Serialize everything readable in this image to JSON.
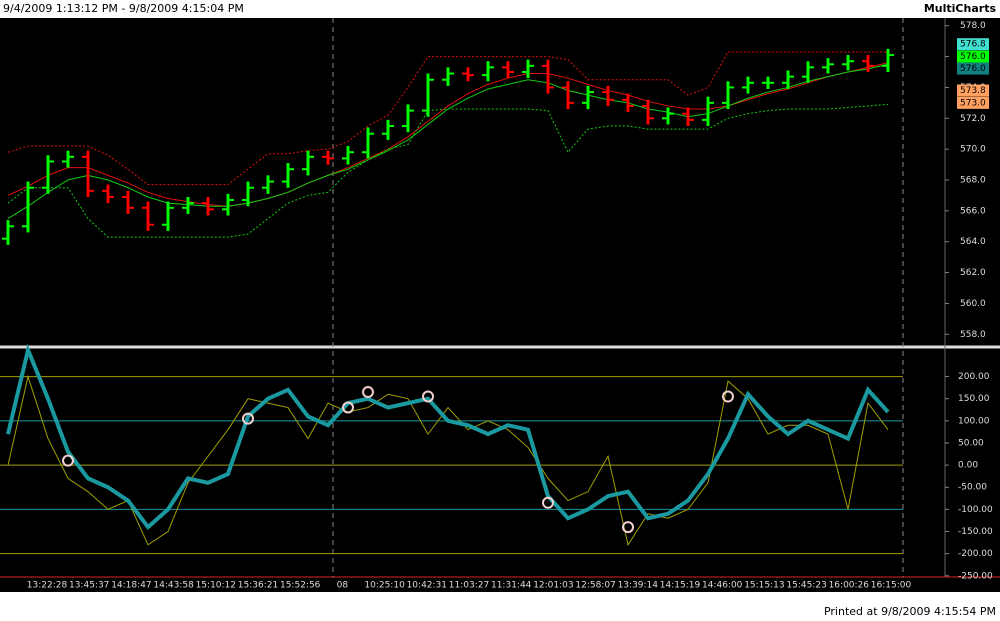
{
  "header": {
    "range": "9/4/2009 1:13:12 PM - 9/8/2009 4:15:04 PM",
    "app": "MultiCharts"
  },
  "footer": "Printed at 9/8/2009 4:15:54 PM",
  "chart_data": [
    {
      "type": "ohlc",
      "up_color": "#00ff00",
      "down_color": "#ff0000",
      "open": [
        564.2,
        565,
        567.5,
        569.2,
        569.5,
        567.3,
        566.9,
        566.2,
        565.1,
        566.2,
        566.5,
        566.1,
        566.7,
        567.5,
        567.9,
        568.7,
        569.5,
        569.4,
        569.8,
        571,
        571.5,
        572.5,
        574.5,
        574.9,
        574.8,
        575.3,
        575,
        575.4,
        574,
        573,
        573.7,
        573.2,
        572.8,
        572,
        572.3,
        571.9,
        573,
        574,
        574.3,
        574.3,
        574.7,
        575.3,
        575.5,
        575.7,
        575.4
      ],
      "high": [
        565.4,
        567.9,
        569.6,
        569.9,
        569.9,
        567.7,
        567.3,
        566.6,
        566.6,
        566.9,
        566.9,
        567.1,
        567.9,
        568.3,
        569.1,
        569.9,
        569.9,
        570.2,
        571.4,
        571.9,
        572.9,
        574.9,
        575.3,
        575.3,
        575.7,
        575.7,
        575.8,
        575.8,
        574.4,
        574.1,
        574.1,
        573.6,
        573.2,
        572.7,
        572.7,
        573.4,
        574.4,
        574.7,
        574.7,
        575.1,
        575.7,
        575.9,
        576.1,
        576.1,
        576.5
      ],
      "low": [
        563.8,
        564.6,
        567.1,
        568.8,
        566.9,
        566.5,
        565.8,
        564.7,
        564.7,
        565.8,
        565.7,
        565.7,
        566.3,
        567.1,
        567.5,
        568.3,
        569,
        569,
        569.4,
        570.6,
        571.1,
        572.1,
        574.1,
        574.4,
        574.4,
        574.6,
        574.6,
        573.6,
        572.6,
        572.6,
        572.8,
        572.4,
        571.6,
        571.6,
        571.5,
        571.5,
        572.6,
        573.6,
        573.9,
        573.9,
        574.3,
        574.9,
        575.1,
        575,
        575
      ],
      "close": [
        565,
        567.5,
        569.2,
        569.5,
        567.3,
        566.9,
        566.2,
        565.1,
        566.2,
        566.5,
        566.1,
        566.7,
        567.5,
        567.9,
        568.7,
        569.5,
        569.4,
        569.8,
        571,
        571.5,
        572.5,
        574.5,
        574.9,
        574.8,
        575.3,
        575,
        575.4,
        574,
        573,
        573.7,
        573.2,
        572.8,
        572,
        572.3,
        571.9,
        573,
        574,
        574.3,
        574.3,
        574.7,
        575.3,
        575.5,
        575.7,
        575.4,
        576.1
      ],
      "series": [
        {
          "color": "#e01010",
          "style": "solid",
          "values": [
            567,
            567.6,
            568.3,
            568.8,
            568.8,
            568.3,
            567.8,
            567.2,
            566.8,
            566.6,
            566.4,
            566.3,
            566.5,
            566.8,
            567.2,
            567.8,
            568.3,
            568.8,
            569.4,
            570,
            570.8,
            571.8,
            572.8,
            573.6,
            574.2,
            574.6,
            574.9,
            574.9,
            574.6,
            574.2,
            573.8,
            573.5,
            573.1,
            572.8,
            572.6,
            572.6,
            572.8,
            573.2,
            573.6,
            573.9,
            574.3,
            574.7,
            575,
            575.3,
            575.6
          ]
        },
        {
          "color": "#10d010",
          "style": "solid",
          "values": [
            565.5,
            566.3,
            567.2,
            568,
            568.3,
            568,
            567.5,
            566.9,
            566.5,
            566.4,
            566.3,
            566.3,
            566.5,
            566.8,
            567.2,
            567.8,
            568.3,
            568.7,
            569.3,
            569.9,
            570.6,
            571.6,
            572.6,
            573.3,
            573.9,
            574.2,
            574.5,
            574.3,
            573.8,
            573.5,
            573.2,
            573,
            572.6,
            572.4,
            572.1,
            572.3,
            572.8,
            573.3,
            573.7,
            574,
            574.4,
            574.7,
            575,
            575.2,
            575.5
          ]
        },
        {
          "color": "#e01010",
          "style": "dotted",
          "values": [
            569.8,
            570.2,
            570.2,
            570.2,
            570.2,
            569.6,
            568.7,
            567.7,
            567.7,
            567.7,
            567.7,
            567.7,
            568.7,
            569.7,
            569.7,
            569.9,
            570,
            570.5,
            571.5,
            572.2,
            574,
            576,
            576,
            576,
            576,
            576,
            576,
            576,
            575.8,
            574.5,
            574.5,
            574.5,
            574.5,
            574.5,
            573.5,
            574,
            576.3,
            576.3,
            576.3,
            576.3,
            576.3,
            576.3,
            576.3,
            576.3,
            576.3
          ]
        },
        {
          "color": "#10d010",
          "style": "dotted",
          "values": [
            566.5,
            567.5,
            567.5,
            567.5,
            565.5,
            564.3,
            564.3,
            564.3,
            564.3,
            564.3,
            564.3,
            564.3,
            564.5,
            565.5,
            566.5,
            567,
            567.2,
            568.5,
            569.3,
            570,
            570.3,
            572.5,
            572.6,
            572.6,
            572.6,
            572.6,
            572.6,
            572.5,
            569.8,
            571.3,
            571.5,
            571.5,
            571.3,
            571.3,
            571.3,
            571.3,
            572,
            572.3,
            572.5,
            572.6,
            572.6,
            572.6,
            572.7,
            572.8,
            572.9
          ]
        }
      ],
      "last_values": [
        {
          "value": 576.8,
          "label": "576.8",
          "color": "#40e0d0"
        },
        {
          "value": 576.0,
          "label": "576.0",
          "color": "#00ff00"
        },
        {
          "value": 576.0,
          "label": "576.0",
          "color": "#108080"
        },
        {
          "value": 573.8,
          "label": "573.8",
          "color": "#ffa060"
        },
        {
          "value": 573.0,
          "label": "573.0",
          "color": "#ffa060"
        }
      ],
      "ylim": [
        557.5,
        578.5
      ],
      "yticks": [
        {
          "value": 578,
          "label": "578.0"
        },
        {
          "value": 576,
          "label": "576.0"
        },
        {
          "value": 574,
          "label": "574.0"
        },
        {
          "value": 572,
          "label": "572.0"
        },
        {
          "value": 570,
          "label": "570.0"
        },
        {
          "value": 568,
          "label": "568.0"
        },
        {
          "value": 566,
          "label": "566.0"
        },
        {
          "value": 564,
          "label": "564.0"
        },
        {
          "value": 562,
          "label": "562.0"
        },
        {
          "value": 560,
          "label": "560.0"
        },
        {
          "value": 558,
          "label": "558.0"
        }
      ]
    },
    {
      "type": "line",
      "series": [
        {
          "color": "#a0a000",
          "width": 1,
          "values": [
            0,
            200,
            60,
            -30,
            -60,
            -100,
            -80,
            -180,
            -150,
            -40,
            20,
            80,
            150,
            140,
            130,
            60,
            140,
            120,
            130,
            160,
            150,
            70,
            130,
            80,
            100,
            80,
            40,
            -30,
            -80,
            -60,
            20,
            -180,
            -110,
            -120,
            -100,
            -40,
            190,
            150,
            70,
            90,
            90,
            70,
            -100,
            140,
            80
          ]
        },
        {
          "color": "#1a9aa0",
          "width": 4,
          "values": [
            70,
            260,
            150,
            30,
            -30,
            -50,
            -80,
            -140,
            -100,
            -30,
            -40,
            -20,
            110,
            150,
            170,
            110,
            90,
            140,
            150,
            130,
            140,
            150,
            100,
            90,
            70,
            90,
            80,
            -70,
            -120,
            -100,
            -70,
            -60,
            -120,
            -110,
            -80,
            -20,
            60,
            160,
            110,
            70,
            100,
            80,
            60,
            170,
            120
          ]
        }
      ],
      "levels": [
        {
          "value": 200,
          "color": "#a0a000"
        },
        {
          "value": 100,
          "color": "#1a9aa0"
        },
        {
          "value": 0,
          "color": "#a0a000"
        },
        {
          "value": -100,
          "color": "#1a9aa0"
        },
        {
          "value": -200,
          "color": "#a0a000"
        }
      ],
      "markers": [
        {
          "index": 3,
          "value": 10
        },
        {
          "index": 12,
          "value": 105
        },
        {
          "index": 17,
          "value": 130
        },
        {
          "index": 18,
          "value": 165
        },
        {
          "index": 21,
          "value": 155
        },
        {
          "index": 27,
          "value": -85
        },
        {
          "index": 31,
          "value": -140
        },
        {
          "index": 36,
          "value": 155
        }
      ],
      "ylim": [
        -255,
        260
      ],
      "yticks": [
        {
          "value": 200,
          "label": "200.00"
        },
        {
          "value": 150,
          "label": "150.00"
        },
        {
          "value": 100,
          "label": "100.00"
        },
        {
          "value": 50,
          "label": "50.00"
        },
        {
          "value": 0,
          "label": "0.00"
        },
        {
          "value": -50,
          "label": "-50.00"
        },
        {
          "value": -100,
          "label": "-100.00"
        },
        {
          "value": -150,
          "label": "-150.00"
        },
        {
          "value": -200,
          "label": "-200.00"
        },
        {
          "value": -250,
          "label": "-250.00"
        }
      ]
    }
  ],
  "time_labels": [
    "13:22:28",
    "13:45:37",
    "14:18:47",
    "14:43:58",
    "15:10:12",
    "15:36:21",
    "15:52:56",
    "08",
    "10:25:10",
    "10:42:31",
    "11:03:27",
    "11:31:44",
    "12:01:03",
    "12:58:07",
    "13:39:14",
    "14:15:19",
    "14:46:00",
    "15:15:13",
    "15:45:23",
    "16:00:26",
    "16:15:00"
  ]
}
